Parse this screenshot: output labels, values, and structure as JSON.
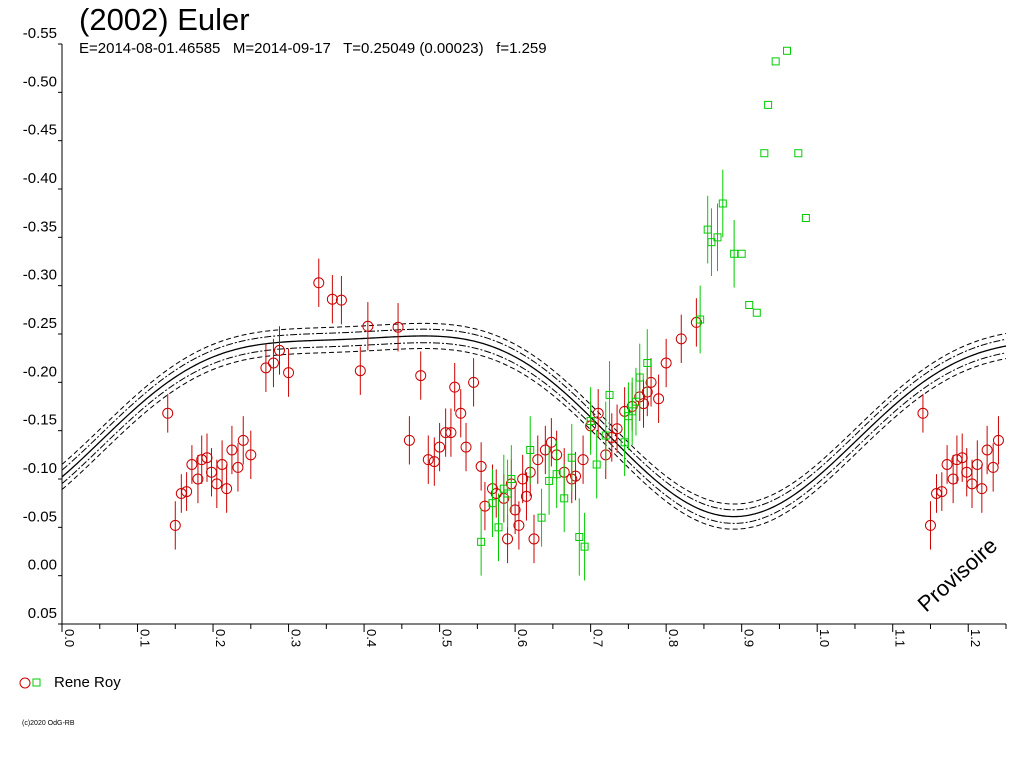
{
  "title": "(2002) Euler",
  "subtitle": {
    "epoch": "E=2014-08-01.46585",
    "midpoint": "M=2014-09-17",
    "period": "T=0.25049 (0.00023)",
    "fourier": "f=1.259"
  },
  "watermark": "Provisoire",
  "copyright": "(c)2020 OdG-RB",
  "colors": {
    "series1": "#cc0000",
    "series2": "#00cc00",
    "curve": "#000000"
  },
  "chart_data": {
    "type": "scatter",
    "xlim": [
      0.0,
      1.25
    ],
    "ylim": [
      0.05,
      -0.55
    ],
    "y_inverted": true,
    "x_ticks": [
      "0.0",
      "0.1",
      "0.2",
      "0.3",
      "0.4",
      "0.5",
      "0.6",
      "0.7",
      "0.8",
      "0.9",
      "1.0",
      "1.1",
      "1.2"
    ],
    "y_ticks": [
      "-0.55",
      "-0.50",
      "-0.45",
      "-0.40",
      "-0.35",
      "-0.30",
      "-0.25",
      "-0.20",
      "-0.15",
      "-0.10",
      "-0.05",
      "0.00",
      "0.05"
    ],
    "legend": [
      {
        "label": "Rene Roy",
        "markers": [
          "circle-red",
          "square-green"
        ]
      }
    ],
    "fit": {
      "mean": -0.178,
      "amp1": 0.092,
      "phase1": 0.895,
      "amp2": 0.025,
      "phase2": 0.385,
      "band_inner": 0.007,
      "band_outer": 0.013
    },
    "series": [
      {
        "marker": "circle",
        "points": [
          [
            0.14,
            -0.168,
            0.02
          ],
          [
            0.15,
            -0.052,
            0.025
          ],
          [
            0.158,
            -0.085,
            0.02
          ],
          [
            0.165,
            -0.087,
            0.02
          ],
          [
            0.172,
            -0.115,
            0.02
          ],
          [
            0.18,
            -0.1,
            0.025
          ],
          [
            0.185,
            -0.12,
            0.025
          ],
          [
            0.192,
            -0.122,
            0.025
          ],
          [
            0.198,
            -0.107,
            0.025
          ],
          [
            0.205,
            -0.095,
            0.025
          ],
          [
            0.212,
            -0.115,
            0.025
          ],
          [
            0.218,
            -0.09,
            0.025
          ],
          [
            0.225,
            -0.13,
            0.025
          ],
          [
            0.233,
            -0.112,
            0.025
          ],
          [
            0.24,
            -0.14,
            0.025
          ],
          [
            0.25,
            -0.125,
            0.025
          ],
          [
            0.27,
            -0.215,
            0.025
          ],
          [
            0.28,
            -0.22,
            0.025
          ],
          [
            0.288,
            -0.233,
            0.025
          ],
          [
            0.3,
            -0.21,
            0.025
          ],
          [
            0.34,
            -0.303,
            0.025
          ],
          [
            0.358,
            -0.286,
            0.025
          ],
          [
            0.37,
            -0.285,
            0.025
          ],
          [
            0.395,
            -0.212,
            0.025
          ],
          [
            0.405,
            -0.258,
            0.025
          ],
          [
            0.445,
            -0.257,
            0.025
          ],
          [
            0.46,
            -0.14,
            0.025
          ],
          [
            0.475,
            -0.207,
            0.025
          ],
          [
            0.485,
            -0.12,
            0.025
          ],
          [
            0.493,
            -0.118,
            0.025
          ],
          [
            0.5,
            -0.133,
            0.025
          ],
          [
            0.508,
            -0.148,
            0.025
          ],
          [
            0.515,
            -0.148,
            0.025
          ],
          [
            0.52,
            -0.195,
            0.025
          ],
          [
            0.528,
            -0.168,
            0.025
          ],
          [
            0.535,
            -0.133,
            0.025
          ],
          [
            0.545,
            -0.2,
            0.025
          ],
          [
            0.555,
            -0.113,
            0.025
          ],
          [
            0.56,
            -0.072,
            0.025
          ],
          [
            0.57,
            -0.09,
            0.025
          ],
          [
            0.575,
            -0.085,
            0.025
          ],
          [
            0.585,
            -0.08,
            0.025
          ],
          [
            0.59,
            -0.038,
            0.025
          ],
          [
            0.595,
            -0.095,
            0.025
          ],
          [
            0.6,
            -0.068,
            0.025
          ],
          [
            0.605,
            -0.052,
            0.025
          ],
          [
            0.61,
            -0.1,
            0.025
          ],
          [
            0.615,
            -0.082,
            0.025
          ],
          [
            0.62,
            -0.107,
            0.025
          ],
          [
            0.625,
            -0.038,
            0.025
          ],
          [
            0.63,
            -0.12,
            0.025
          ],
          [
            0.64,
            -0.13,
            0.025
          ],
          [
            0.648,
            -0.138,
            0.025
          ],
          [
            0.655,
            -0.125,
            0.025
          ],
          [
            0.665,
            -0.107,
            0.025
          ],
          [
            0.675,
            -0.1,
            0.025
          ],
          [
            0.68,
            -0.103,
            0.025
          ],
          [
            0.69,
            -0.12,
            0.025
          ],
          [
            0.7,
            -0.155,
            0.025
          ],
          [
            0.71,
            -0.168,
            0.025
          ],
          [
            0.72,
            -0.125,
            0.025
          ],
          [
            0.728,
            -0.143,
            0.025
          ],
          [
            0.735,
            -0.152,
            0.025
          ],
          [
            0.745,
            -0.17,
            0.025
          ],
          [
            0.755,
            -0.175,
            0.025
          ],
          [
            0.765,
            -0.185,
            0.025
          ],
          [
            0.77,
            -0.178,
            0.025
          ],
          [
            0.775,
            -0.19,
            0.025
          ],
          [
            0.78,
            -0.2,
            0.025
          ],
          [
            0.79,
            -0.183,
            0.025
          ],
          [
            0.8,
            -0.22,
            0.025
          ],
          [
            0.82,
            -0.245,
            0.025
          ],
          [
            0.84,
            -0.262,
            0.025
          ],
          [
            1.14,
            -0.168,
            0.02
          ],
          [
            1.15,
            -0.052,
            0.025
          ],
          [
            1.158,
            -0.085,
            0.02
          ],
          [
            1.165,
            -0.087,
            0.02
          ],
          [
            1.172,
            -0.115,
            0.02
          ],
          [
            1.18,
            -0.1,
            0.025
          ],
          [
            1.185,
            -0.12,
            0.025
          ],
          [
            1.192,
            -0.122,
            0.025
          ],
          [
            1.198,
            -0.107,
            0.025
          ],
          [
            1.205,
            -0.095,
            0.025
          ],
          [
            1.212,
            -0.115,
            0.025
          ],
          [
            1.218,
            -0.09,
            0.025
          ],
          [
            1.225,
            -0.13,
            0.025
          ],
          [
            1.233,
            -0.112,
            0.025
          ],
          [
            1.24,
            -0.14,
            0.025
          ]
        ]
      },
      {
        "marker": "square",
        "points": [
          [
            0.555,
            -0.035,
            0.035
          ],
          [
            0.57,
            -0.075,
            0.035
          ],
          [
            0.578,
            -0.05,
            0.035
          ],
          [
            0.585,
            -0.09,
            0.035
          ],
          [
            0.59,
            -0.085,
            0.035
          ],
          [
            0.595,
            -0.1,
            0.035
          ],
          [
            0.62,
            -0.13,
            0.035
          ],
          [
            0.635,
            -0.06,
            0.03
          ],
          [
            0.645,
            -0.098,
            0.035
          ],
          [
            0.655,
            -0.105,
            0.035
          ],
          [
            0.665,
            -0.08,
            0.035
          ],
          [
            0.675,
            -0.122,
            0.035
          ],
          [
            0.685,
            -0.04,
            0.04
          ],
          [
            0.692,
            -0.03,
            0.035
          ],
          [
            0.7,
            -0.16,
            0.035
          ],
          [
            0.708,
            -0.115,
            0.035
          ],
          [
            0.72,
            -0.145,
            0.035
          ],
          [
            0.725,
            -0.187,
            0.035
          ],
          [
            0.745,
            -0.138,
            0.035
          ],
          [
            0.75,
            -0.165,
            0.035
          ],
          [
            0.755,
            -0.17,
            0.035
          ],
          [
            0.76,
            -0.18,
            0.035
          ],
          [
            0.765,
            -0.205,
            0.035
          ],
          [
            0.775,
            -0.22,
            0.035
          ],
          [
            0.845,
            -0.265,
            0.035
          ],
          [
            0.855,
            -0.358,
            0.035
          ],
          [
            0.86,
            -0.345,
            0.035
          ],
          [
            0.868,
            -0.35,
            0.035
          ],
          [
            0.875,
            -0.385,
            0.035
          ],
          [
            0.89,
            -0.333,
            0.035
          ],
          [
            0.9,
            -0.333,
            0.0
          ],
          [
            0.91,
            -0.28,
            0.0
          ],
          [
            0.92,
            -0.272,
            0.0
          ],
          [
            0.93,
            -0.437,
            0.0
          ],
          [
            0.935,
            -0.487,
            0.0
          ],
          [
            0.945,
            -0.532,
            0.0
          ],
          [
            0.96,
            -0.543,
            0.0
          ],
          [
            0.975,
            -0.437,
            0.0
          ],
          [
            0.985,
            -0.37,
            0.0
          ]
        ]
      }
    ]
  }
}
